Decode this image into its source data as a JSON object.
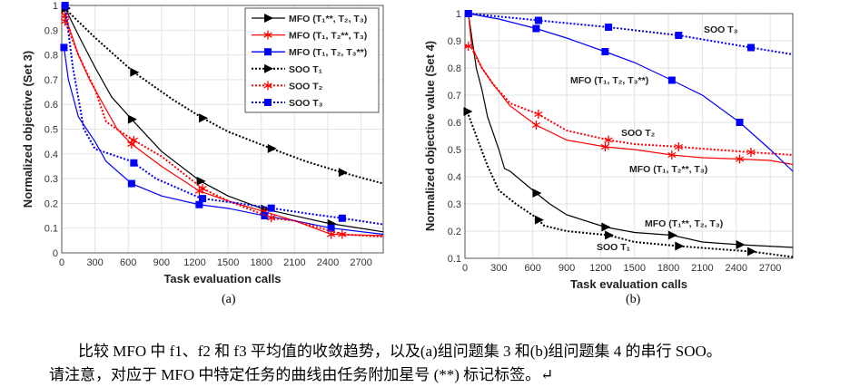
{
  "chart_data": [
    {
      "type": "line",
      "panel_label": "(a)",
      "xlabel": "Task evaluation calls",
      "ylabel": "Normalized objective (Set 3)",
      "xlim": [
        0,
        2900
      ],
      "ylim": [
        0,
        1
      ],
      "xticks": [
        0,
        300,
        600,
        900,
        1200,
        1500,
        1800,
        2100,
        2400,
        2700
      ],
      "yticks": [
        0,
        0.1,
        0.2,
        0.3,
        0.4,
        0.5,
        0.6,
        0.7,
        0.8,
        0.9,
        1
      ],
      "grid": true,
      "legend": "top-right",
      "series": [
        {
          "name": "MFO (T₁**, T₂, T₃)",
          "color": "#000000",
          "style": "solid",
          "marker": "triangle",
          "x": [
            0,
            30,
            150,
            300,
            450,
            630,
            900,
            1250,
            1500,
            1800,
            2100,
            2400,
            2900
          ],
          "y": [
            1,
            0.99,
            0.88,
            0.75,
            0.63,
            0.54,
            0.41,
            0.29,
            0.23,
            0.18,
            0.15,
            0.12,
            0.085
          ],
          "markers_x": [
            30,
            630,
            1250,
            1830,
            2430
          ]
        },
        {
          "name": "MFO (T₁, T₂**, T₃)",
          "color": "#ff0000",
          "style": "solid",
          "marker": "star",
          "x": [
            0,
            30,
            150,
            250,
            400,
            500,
            630,
            900,
            1240,
            1500,
            1800,
            2100,
            2430,
            2900
          ],
          "y": [
            0.97,
            0.96,
            0.8,
            0.7,
            0.58,
            0.5,
            0.44,
            0.35,
            0.25,
            0.21,
            0.17,
            0.13,
            0.075,
            0.07
          ],
          "markers_x": [
            30,
            630,
            1240,
            1830,
            2430
          ]
        },
        {
          "name": "MFO (T₁, T₂, T₃**)",
          "color": "#0000ff",
          "style": "solid",
          "marker": "square",
          "x": [
            0,
            20,
            60,
            150,
            300,
            400,
            630,
            900,
            1240,
            1500,
            1830,
            2100,
            2430,
            2900
          ],
          "y": [
            0.83,
            0.83,
            0.7,
            0.55,
            0.45,
            0.37,
            0.28,
            0.23,
            0.195,
            0.18,
            0.15,
            0.13,
            0.1,
            0.075
          ],
          "markers_x": [
            20,
            630,
            1240,
            1830,
            2430
          ]
        },
        {
          "name": "SOO T₁",
          "color": "#000000",
          "style": "dotted",
          "marker": "triangle",
          "x": [
            0,
            300,
            650,
            1000,
            1270,
            1500,
            1900,
            2200,
            2530,
            2900
          ],
          "y": [
            1,
            0.87,
            0.73,
            0.62,
            0.545,
            0.49,
            0.42,
            0.37,
            0.325,
            0.28
          ],
          "markers_x": [
            30,
            650,
            1270,
            1890,
            2530
          ]
        },
        {
          "name": "SOO T₂",
          "color": "#ff0000",
          "style": "dotted",
          "marker": "star",
          "x": [
            0,
            150,
            300,
            400,
            630,
            900,
            1270,
            1500,
            1900,
            2100,
            2530,
            2900
          ],
          "y": [
            0.97,
            0.8,
            0.66,
            0.53,
            0.46,
            0.39,
            0.26,
            0.21,
            0.14,
            0.13,
            0.075,
            0.065
          ],
          "markers_x": [
            30,
            650,
            1270,
            1890,
            2530
          ]
        },
        {
          "name": "SOO T₃",
          "color": "#0000ff",
          "style": "dotted",
          "marker": "square",
          "x": [
            0,
            30,
            100,
            200,
            300,
            630,
            850,
            1260,
            1600,
            1900,
            2200,
            2530,
            2900
          ],
          "y": [
            1,
            1,
            0.75,
            0.5,
            0.42,
            0.37,
            0.3,
            0.22,
            0.2,
            0.18,
            0.16,
            0.14,
            0.115
          ],
          "markers_x": [
            30,
            650,
            1270,
            1890,
            2530
          ]
        }
      ]
    },
    {
      "type": "line",
      "panel_label": "(b)",
      "xlabel": "Task evaluation calls",
      "ylabel": "Normalized objective value (Set 4)",
      "xlim": [
        0,
        2900
      ],
      "ylim": [
        0.1,
        1
      ],
      "xticks": [
        0,
        300,
        600,
        900,
        1200,
        1500,
        1800,
        2100,
        2400,
        2700
      ],
      "yticks": [
        0.1,
        0.2,
        0.3,
        0.4,
        0.5,
        0.6,
        0.7,
        0.8,
        0.9,
        1
      ],
      "grid": true,
      "legend": "inline labels",
      "series": [
        {
          "name": "MFO (T₁**, T₂, T₃)",
          "color": "#000000",
          "style": "solid",
          "marker": "triangle",
          "x": [
            0,
            30,
            100,
            150,
            200,
            300,
            350,
            400,
            630,
            750,
            900,
            1240,
            1500,
            1830,
            2100,
            2430,
            2900
          ],
          "y": [
            1,
            1,
            0.8,
            0.72,
            0.62,
            0.5,
            0.43,
            0.42,
            0.34,
            0.3,
            0.26,
            0.215,
            0.195,
            0.185,
            0.16,
            0.15,
            0.14
          ],
          "markers_x": [
            630,
            1240,
            1830,
            2430
          ]
        },
        {
          "name": "SOO T₁",
          "color": "#000000",
          "style": "dotted",
          "marker": "triangle",
          "x": [
            20,
            100,
            200,
            300,
            450,
            630,
            700,
            900,
            1270,
            1500,
            1890,
            2200,
            2530,
            2900
          ],
          "y": [
            0.64,
            0.55,
            0.44,
            0.35,
            0.3,
            0.25,
            0.22,
            0.2,
            0.185,
            0.16,
            0.145,
            0.135,
            0.125,
            0.105
          ],
          "markers_x": [
            20,
            650,
            1270,
            1890,
            2530
          ]
        },
        {
          "name": "MFO (T₁, T₂**, T₃)",
          "color": "#ff0000",
          "style": "solid",
          "marker": "star",
          "x": [
            0,
            30,
            60,
            150,
            250,
            400,
            630,
            900,
            1240,
            1500,
            1830,
            2100,
            2430,
            2700,
            2900
          ],
          "y": [
            1,
            1,
            0.88,
            0.8,
            0.74,
            0.66,
            0.59,
            0.535,
            0.51,
            0.5,
            0.48,
            0.47,
            0.465,
            0.46,
            0.445
          ],
          "markers_x": [
            630,
            1240,
            1830,
            2430
          ]
        },
        {
          "name": "SOO T₂",
          "color": "#ff0000",
          "style": "dotted",
          "marker": "star",
          "x": [
            0,
            50,
            150,
            250,
            400,
            650,
            900,
            1270,
            1500,
            1890,
            2200,
            2530,
            2900
          ],
          "y": [
            0.88,
            0.88,
            0.8,
            0.74,
            0.67,
            0.63,
            0.57,
            0.535,
            0.52,
            0.51,
            0.5,
            0.49,
            0.48
          ],
          "markers_x": [
            30,
            650,
            1270,
            1890,
            2530
          ]
        },
        {
          "name": "MFO (T₁, T₂, T₃**)",
          "color": "#0000ff",
          "style": "solid",
          "marker": "square",
          "x": [
            0,
            30,
            300,
            630,
            900,
            1240,
            1500,
            1830,
            2100,
            2430,
            2700,
            2900
          ],
          "y": [
            1,
            1,
            0.98,
            0.945,
            0.91,
            0.86,
            0.82,
            0.755,
            0.7,
            0.6,
            0.5,
            0.42
          ],
          "markers_x": [
            30,
            630,
            1240,
            1830,
            2430
          ]
        },
        {
          "name": "SOO T₃",
          "color": "#0000ff",
          "style": "dotted",
          "marker": "square",
          "x": [
            0,
            30,
            650,
            1270,
            1890,
            2530,
            2900
          ],
          "y": [
            1,
            1,
            0.975,
            0.95,
            0.92,
            0.875,
            0.85
          ],
          "markers_x": [
            30,
            650,
            1270,
            1890,
            2530
          ]
        }
      ]
    }
  ],
  "caption": {
    "line1": "比较 MFO 中 f1、f2 和 f3 平均值的收敛趋势，以及(a)组问题集 3 和(b)组问题集 4 的串行  SOO。",
    "line2": "请注意，对应于 MFO 中特定任务的曲线由任务附加星号  (**)  标记标签。↵"
  }
}
